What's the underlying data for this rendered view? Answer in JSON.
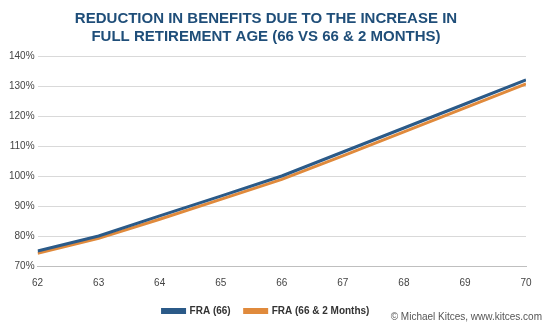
{
  "chart_data": {
    "type": "line",
    "title": "REDUCTION IN BENEFITS DUE TO THE INCREASE IN FULL RETIREMENT AGE (66 VS 66 & 2 MONTHS)",
    "x": [
      62,
      63,
      64,
      65,
      66,
      67,
      68,
      69,
      70
    ],
    "series": [
      {
        "name": "FRA (66)",
        "color": "#2b5a88",
        "values": [
          75,
          80,
          86.7,
          93.3,
          100,
          108,
          116,
          124,
          132
        ]
      },
      {
        "name": "FRA (66 & 2 Months)",
        "color": "#e08a3c",
        "values": [
          74.2,
          79.2,
          85.6,
          92.2,
          98.9,
          106.7,
          114.7,
          122.7,
          130.7
        ]
      }
    ],
    "xlim": [
      62,
      70
    ],
    "xticks": [
      62,
      63,
      64,
      65,
      66,
      67,
      68,
      69,
      70
    ],
    "ylim": [
      70,
      140
    ],
    "yticks": [
      {
        "value": 70,
        "label": "70%"
      },
      {
        "value": 80,
        "label": "80%"
      },
      {
        "value": 90,
        "label": "90%"
      },
      {
        "value": 100,
        "label": "100%"
      },
      {
        "value": 110,
        "label": "110%"
      },
      {
        "value": 120,
        "label": "120%"
      },
      {
        "value": 130,
        "label": "130%"
      },
      {
        "value": 140,
        "label": "140%"
      }
    ],
    "grid": true,
    "legend": "bottom",
    "annotation": "© Michael Kitces, www.kitces.com"
  }
}
